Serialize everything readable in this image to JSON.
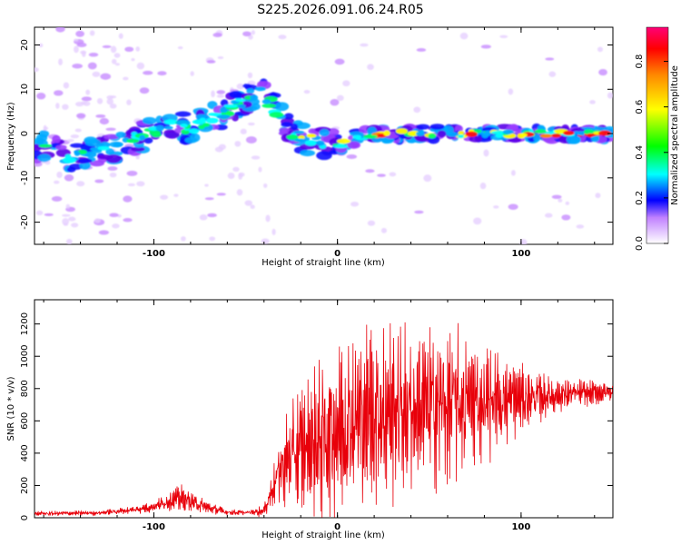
{
  "title": "S225.2026.091.06.24.R05",
  "chart_data": [
    {
      "type": "heatmap",
      "xlabel": "Height of straight line (km)",
      "ylabel": "Frequency (Hz)",
      "xlim": [
        -165,
        150
      ],
      "ylim": [
        -25,
        24
      ],
      "xticks": [
        -100,
        0,
        100
      ],
      "yticks": [
        -20,
        -10,
        0,
        10,
        20
      ],
      "ridge": {
        "x": [
          -160,
          -150,
          -140,
          -130,
          -120,
          -110,
          -100,
          -90,
          -80,
          -70,
          -60,
          -50,
          -45,
          -40,
          -35,
          -30,
          -25,
          -20,
          -10,
          0,
          10,
          20,
          40,
          60,
          80,
          100,
          120,
          150
        ],
        "freq": [
          -3,
          -5,
          -5,
          -4,
          -3,
          -1,
          0,
          2,
          1,
          3,
          5,
          8,
          9,
          9,
          6,
          3,
          0,
          -1,
          -2,
          -3,
          -1,
          0,
          0,
          0,
          0,
          0,
          0,
          0
        ]
      },
      "colorbar": {
        "label": "Normalized spectral amplitude",
        "ticks": [
          "0.0",
          "0.2",
          "0.4",
          "0.6",
          "0.8"
        ],
        "range": [
          0,
          0.95
        ]
      }
    },
    {
      "type": "line",
      "xlabel": "Height of straight line (km)",
      "ylabel": "SNR (10 * v/v)",
      "xlim": [
        -165,
        150
      ],
      "ylim": [
        0,
        1350
      ],
      "xticks": [
        -100,
        0,
        100
      ],
      "yticks": [
        0,
        200,
        400,
        600,
        800,
        1000,
        1200
      ],
      "series": [
        {
          "name": "SNR",
          "color": "#e8000a",
          "envelope": {
            "x": [
              -165,
              -130,
              -110,
              -100,
              -90,
              -85,
              -80,
              -70,
              -60,
              -50,
              -40,
              -33,
              -30,
              -25,
              -20,
              -10,
              0,
              10,
              20,
              40,
              60,
              80,
              100,
              120,
              150
            ],
            "mean": [
              25,
              30,
              50,
              70,
              110,
              120,
              100,
              60,
              35,
              30,
              45,
              250,
              320,
              380,
              420,
              480,
              560,
              620,
              650,
              680,
              700,
              720,
              740,
              760,
              780
            ],
            "amp": [
              15,
              15,
              25,
              35,
              60,
              80,
              60,
              35,
              20,
              15,
              40,
              150,
              250,
              320,
              400,
              450,
              500,
              520,
              560,
              520,
              480,
              360,
              200,
              100,
              60
            ]
          }
        }
      ]
    }
  ]
}
